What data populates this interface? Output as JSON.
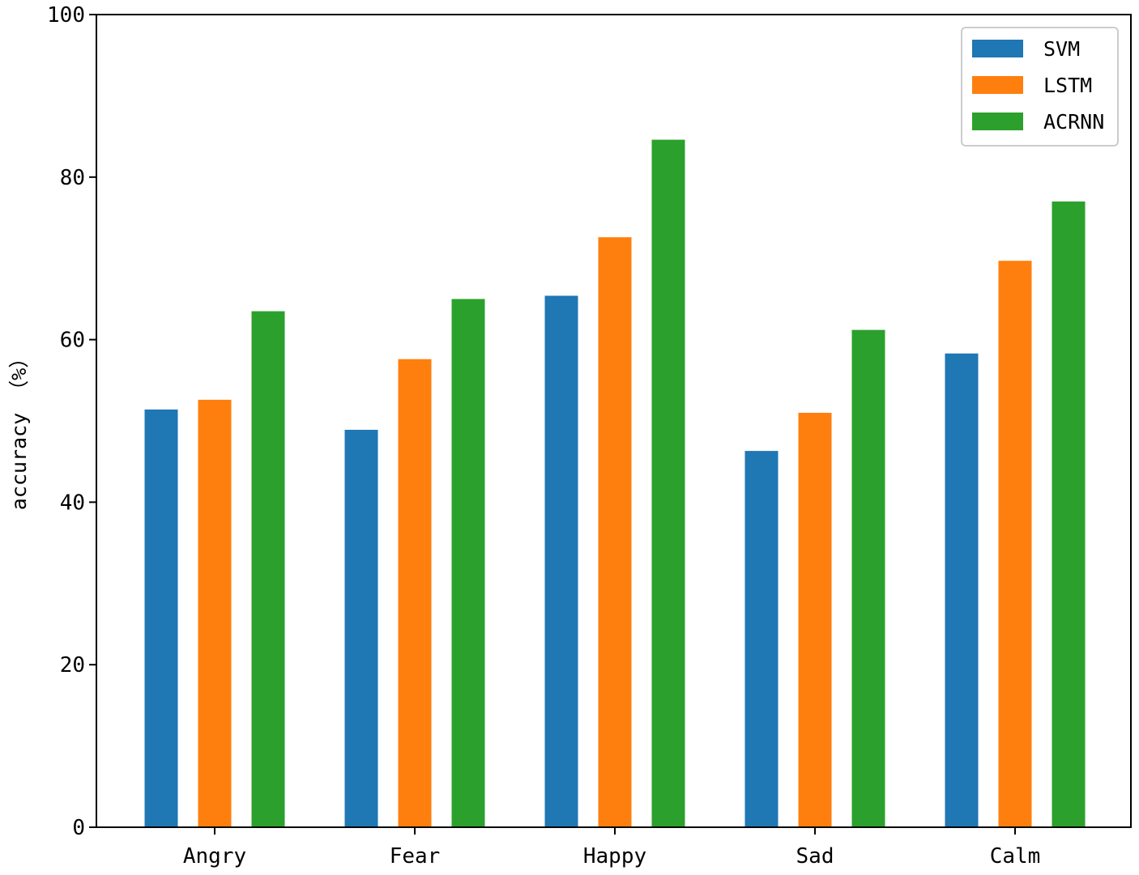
{
  "chart_data": {
    "type": "bar",
    "categories": [
      "Angry",
      "Fear",
      "Happy",
      "Sad",
      "Calm"
    ],
    "series": [
      {
        "name": "SVM",
        "color": "#1f77b4",
        "values": [
          51.4,
          48.9,
          65.4,
          46.3,
          58.3
        ]
      },
      {
        "name": "LSTM",
        "color": "#ff7f0e",
        "values": [
          52.6,
          57.6,
          72.6,
          51.0,
          69.7
        ]
      },
      {
        "name": "ACRNN",
        "color": "#2ca02c",
        "values": [
          63.5,
          65.0,
          84.6,
          61.2,
          77.0
        ]
      }
    ],
    "title": "",
    "xlabel": "",
    "ylabel": "accuracy （%）",
    "ylim": [
      0,
      100
    ],
    "yticks": [
      0,
      20,
      40,
      60,
      80,
      100
    ],
    "legend_position": "top-right",
    "grid": false
  }
}
